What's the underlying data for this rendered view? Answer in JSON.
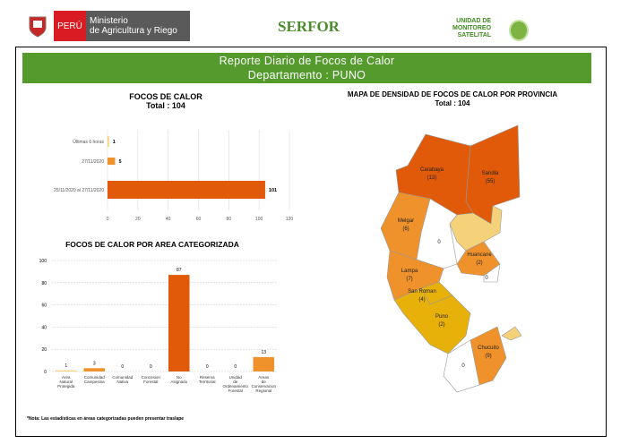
{
  "header": {
    "peru": "PERÚ",
    "ministry_line1": "Ministerio",
    "ministry_line2": "de Agricultura y Riego",
    "serfor": "SERFOR",
    "ums_line1": "UNIDAD DE",
    "ums_line2": "MONITOREO",
    "ums_line3": "SATELITAL"
  },
  "banner": {
    "title": "Reporte Diario de Focos de Calor",
    "subtitle": "Departamento : PUNO"
  },
  "colors": {
    "green": "#549a2d",
    "dark_orange": "#e05a0a",
    "orange": "#f0922c",
    "light": "#f5d27a",
    "yellow": "#e8b10a"
  },
  "chart_data": [
    {
      "type": "bar",
      "orientation": "horizontal",
      "title": "FOCOS DE CALOR",
      "subtitle": "Total : 104",
      "categories": [
        "Últimas 6 horas",
        "27/11/2020",
        "25/11/2020 al 27/11/2020"
      ],
      "values": [
        1,
        5,
        104
      ],
      "xlim": [
        0,
        120
      ],
      "xticks": [
        0,
        20,
        40,
        60,
        80,
        100,
        120
      ]
    },
    {
      "type": "bar",
      "title": "FOCOS DE CALOR POR AREA CATEGORIZADA",
      "categories": [
        "Area Natural Protegida",
        "Comunidad Campesina",
        "Comunidad Nativa",
        "Concesion Forestal",
        "No Asignado",
        "Reserva Territorial",
        "Unidad de Ordenamiento Forestal",
        "Areas de Conservacion Regional"
      ],
      "values": [
        1,
        3,
        0,
        0,
        87,
        0,
        0,
        13
      ],
      "ylim": [
        0,
        100
      ],
      "yticks": [
        0,
        20,
        40,
        60,
        80,
        100
      ]
    }
  ],
  "map": {
    "title": "MAPA DE DENSIDAD DE FOCOS DE CALOR POR PROVINCIA",
    "subtitle": "Total : 104",
    "provinces": [
      {
        "name": "Carabaya",
        "count": "(13)"
      },
      {
        "name": "Sandia",
        "count": "(55)"
      },
      {
        "name": "Melgar",
        "count": "(6)"
      },
      {
        "name": "Huancane",
        "count": "(2)"
      },
      {
        "name": "Lampa",
        "count": "(7)"
      },
      {
        "name": "San Roman",
        "count": "(4)"
      },
      {
        "name": "Puno",
        "count": "(2)"
      },
      {
        "name": "Chucuito",
        "count": "(9)"
      }
    ],
    "zero_labels": [
      "0",
      "0",
      "0"
    ]
  },
  "note": "*Nota: Las estadísticas en áreas categorizadas pueden presentar traslape"
}
